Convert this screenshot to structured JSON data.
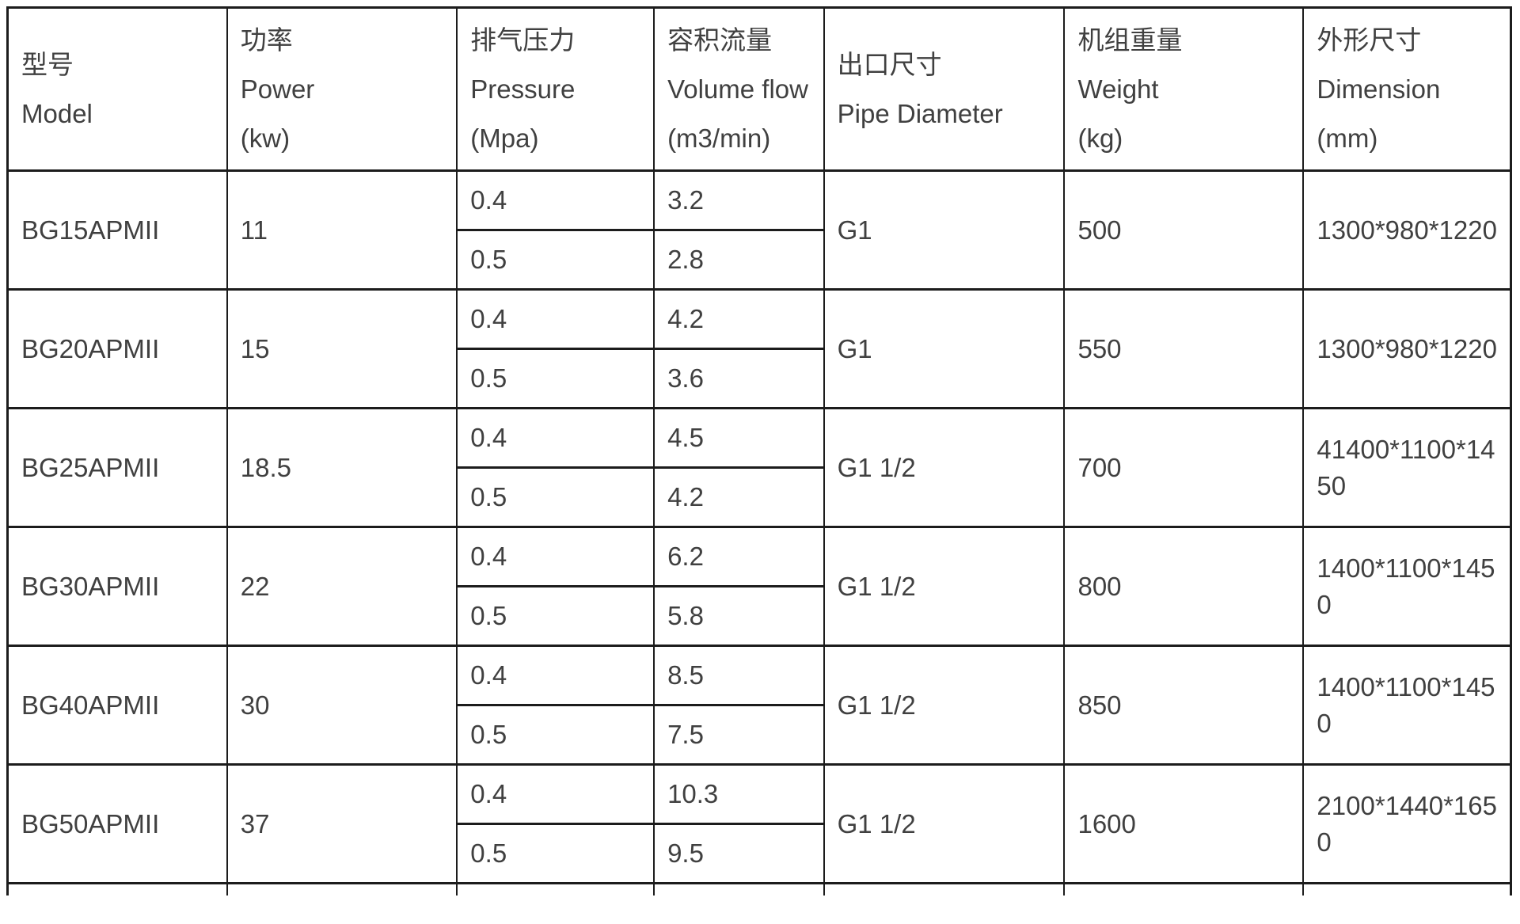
{
  "table": {
    "colors": {
      "border": "#1c1c1c",
      "text": "#404040",
      "background": "#ffffff"
    },
    "columns": [
      "model",
      "power",
      "pressure",
      "flow",
      "pipe",
      "weight",
      "dimension"
    ],
    "column_widths_pct": [
      14.6,
      15.3,
      13.1,
      11.3,
      16.0,
      15.9,
      13.8
    ],
    "headers": [
      {
        "key": "model",
        "cn": "型号",
        "en": "Model",
        "unit": ""
      },
      {
        "key": "power",
        "cn": "功率",
        "en": "Power",
        "unit": "(kw)"
      },
      {
        "key": "pressure",
        "cn": "排气压力",
        "en": "Pressure",
        "unit": "(Mpa)"
      },
      {
        "key": "flow",
        "cn": "容积流量",
        "en": "Volume flow",
        "unit": "(m3/min)"
      },
      {
        "key": "pipe",
        "cn": "出口尺寸",
        "en": "Pipe Diameter",
        "unit": ""
      },
      {
        "key": "weight",
        "cn": "机组重量",
        "en": "Weight",
        "unit": "(kg)"
      },
      {
        "key": "dimension",
        "cn": "外形尺寸",
        "en": "Dimension",
        "unit": "(mm)"
      }
    ],
    "rows": [
      {
        "model": "BG15APMII",
        "power": "11",
        "entries": [
          {
            "pressure": "0.4",
            "flow": "3.2"
          },
          {
            "pressure": "0.5",
            "flow": "2.8"
          }
        ],
        "pipe": "G1",
        "weight": "500",
        "dimension": "1300*980*1220"
      },
      {
        "model": "BG20APMII",
        "power": "15",
        "entries": [
          {
            "pressure": "0.4",
            "flow": "4.2"
          },
          {
            "pressure": "0.5",
            "flow": "3.6"
          }
        ],
        "pipe": "G1",
        "weight": "550",
        "dimension": "1300*980*1220"
      },
      {
        "model": "BG25APMII",
        "power": "18.5",
        "entries": [
          {
            "pressure": "0.4",
            "flow": "4.5"
          },
          {
            "pressure": "0.5",
            "flow": "4.2"
          }
        ],
        "pipe": "G1 1/2",
        "weight": "700",
        "dimension": "41400*1100*1450"
      },
      {
        "model": "BG30APMII",
        "power": "22",
        "entries": [
          {
            "pressure": "0.4",
            "flow": "6.2"
          },
          {
            "pressure": "0.5",
            "flow": "5.8"
          }
        ],
        "pipe": "G1 1/2",
        "weight": "800",
        "dimension": "1400*1100*1450"
      },
      {
        "model": "BG40APMII",
        "power": "30",
        "entries": [
          {
            "pressure": "0.4",
            "flow": "8.5"
          },
          {
            "pressure": "0.5",
            "flow": "7.5"
          }
        ],
        "pipe": "G1 1/2",
        "weight": "850",
        "dimension": "1400*1100*1450"
      },
      {
        "model": "BG50APMII",
        "power": "37",
        "entries": [
          {
            "pressure": "0.4",
            "flow": "10.3"
          },
          {
            "pressure": "0.5",
            "flow": "9.5"
          }
        ],
        "pipe": "G1 1/2",
        "weight": "1600",
        "dimension": "2100*1440*1650"
      }
    ]
  }
}
